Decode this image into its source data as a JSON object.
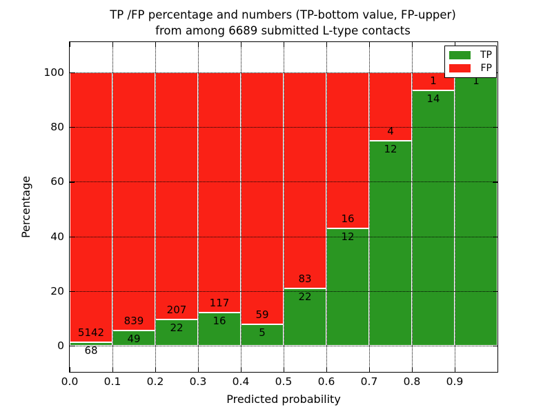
{
  "figure": {
    "title_line1": "TP /FP percentage and numbers (TP-bottom value, FP-upper)",
    "title_line2": "from among 6689 submitted L-type contacts"
  },
  "chart_data": {
    "type": "bar",
    "stacked": true,
    "normalized": "each bin scaled to 100%",
    "title": "TP /FP percentage and numbers (TP-bottom value, FP-upper)\nfrom among 6689 submitted L-type contacts",
    "xlabel": "Predicted probability",
    "ylabel": "Percentage",
    "total_contacts": 6689,
    "categories": [
      "0.0-0.1",
      "0.1-0.2",
      "0.2-0.3",
      "0.3-0.4",
      "0.4-0.5",
      "0.5-0.6",
      "0.6-0.7",
      "0.7-0.8",
      "0.8-0.9",
      "0.9-1.0"
    ],
    "series": [
      {
        "name": "TP",
        "position": "bottom",
        "values": [
          68,
          49,
          22,
          16,
          5,
          22,
          12,
          12,
          14,
          1
        ]
      },
      {
        "name": "FP",
        "position": "top",
        "values": [
          5142,
          839,
          207,
          117,
          59,
          83,
          16,
          4,
          1,
          0
        ]
      }
    ],
    "tp_percent_of_bin": [
      1.31,
      5.52,
      9.61,
      12.03,
      7.81,
      20.95,
      42.86,
      75.0,
      93.33,
      100.0
    ],
    "x_tick_labels": [
      "0.0",
      "0.1",
      "0.2",
      "0.3",
      "0.4",
      "0.5",
      "0.6",
      "0.7",
      "0.8",
      "0.9"
    ],
    "y_ticks": [
      0,
      20,
      40,
      60,
      80,
      100
    ],
    "y_tick_labels": [
      "0",
      "20",
      "40",
      "60",
      "80",
      "100"
    ],
    "xlim": [
      0.0,
      1.0
    ],
    "ylim": [
      -10,
      111
    ],
    "grid": "dotted black, on",
    "colors": {
      "tp": "#2a9622",
      "fp": "#fa2116",
      "bar_edge": "#ffffff",
      "text": "#000000"
    },
    "legend": {
      "position": "upper right",
      "entries": [
        {
          "label": "TP",
          "color_key": "tp"
        },
        {
          "label": "FP",
          "color_key": "fp"
        }
      ]
    }
  }
}
